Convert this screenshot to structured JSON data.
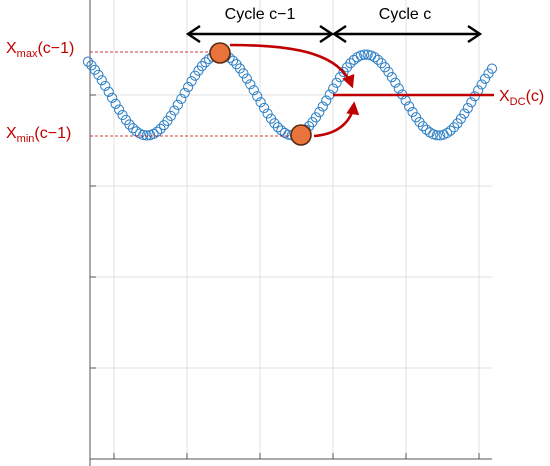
{
  "cycle_labels": {
    "previous": "Cycle c−1",
    "current": "Cycle c"
  },
  "annotations": {
    "xmax": {
      "base": "X",
      "sub": "max",
      "arg": "(c−1)"
    },
    "xmin": {
      "base": "X",
      "sub": "min",
      "arg": "(c−1)"
    },
    "xdc": {
      "base": "X",
      "sub": "DC",
      "arg": "(c)"
    }
  },
  "colors": {
    "signal": "#2a7dc4",
    "marker_fill": "#e8743b",
    "marker_stroke": "#5a2a10",
    "annotation": "#c00000",
    "grid": "#d9d9d9",
    "arrow_black": "#000000"
  },
  "signal": {
    "cycles_shown": 2.75,
    "amplitude": 1,
    "dc_offset": 0
  }
}
